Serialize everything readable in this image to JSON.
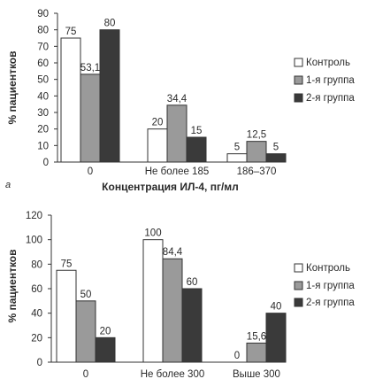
{
  "chart_data": [
    {
      "type": "bar",
      "panel_label": "а",
      "xlabel": "Концентрация ИЛ-4, пг/мл",
      "ylabel": "% пациентков",
      "ylim": [
        0,
        90
      ],
      "yticks": [
        0,
        10,
        20,
        30,
        40,
        50,
        60,
        70,
        80,
        90
      ],
      "categories": [
        "0",
        "Не более 185",
        "186–370"
      ],
      "series": [
        {
          "name": "Контроль",
          "values": [
            75,
            20,
            5
          ],
          "labels": [
            "75",
            "20",
            "5"
          ],
          "color": "#ffffff"
        },
        {
          "name": "1-я группа",
          "values": [
            53.1,
            34.4,
            12.5
          ],
          "labels": [
            "53,1",
            "34,4",
            "12,5"
          ],
          "color": "#9a9a9a"
        },
        {
          "name": "2-я группа",
          "values": [
            80,
            15,
            5
          ],
          "labels": [
            "80",
            "15",
            "5"
          ],
          "color": "#3a3a3a"
        }
      ],
      "grid": false,
      "legend_position": "right"
    },
    {
      "type": "bar",
      "ylabel": "% пациентков",
      "ylim": [
        0,
        120
      ],
      "yticks": [
        0,
        20,
        40,
        60,
        80,
        100,
        120
      ],
      "categories": [
        "0",
        "Не более 300",
        "Выше 300"
      ],
      "series": [
        {
          "name": "Контроль",
          "values": [
            75,
            100,
            0
          ],
          "labels": [
            "75",
            "100",
            "0"
          ],
          "color": "#ffffff"
        },
        {
          "name": "1-я группа",
          "values": [
            50,
            84.4,
            15.6
          ],
          "labels": [
            "50",
            "84,4",
            "15,6"
          ],
          "color": "#9a9a9a"
        },
        {
          "name": "2-я группа",
          "values": [
            20,
            60,
            40
          ],
          "labels": [
            "20",
            "60",
            "40"
          ],
          "color": "#3a3a3a"
        }
      ],
      "grid": false,
      "legend_position": "right"
    }
  ]
}
